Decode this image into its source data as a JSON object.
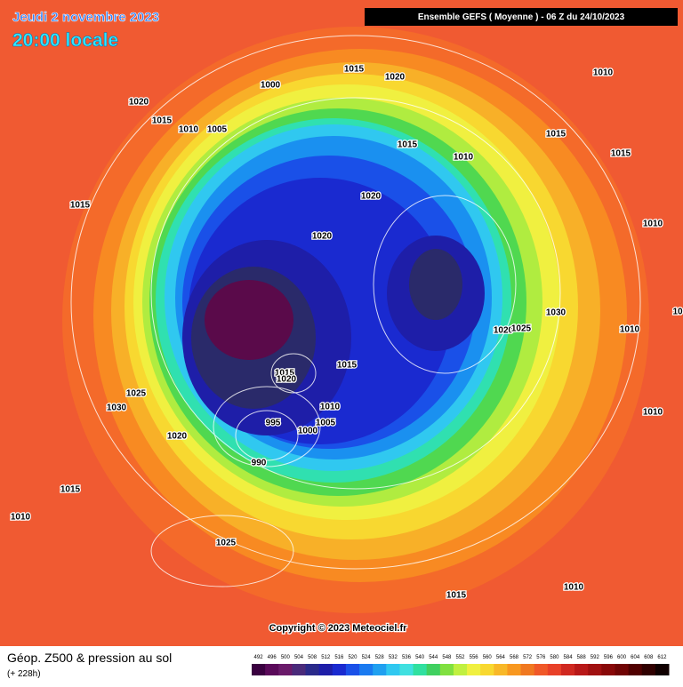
{
  "header": {
    "date": "Jeudi 2 novembre 2023",
    "time": "20:00 locale",
    "model": "Ensemble GEFS  ( Moyenne )  -  06 Z du 24/10/2023"
  },
  "isobar_labels": [
    "1015",
    "1020",
    "1010",
    "1000",
    "1020",
    "1015",
    "1010",
    "1005",
    "1015",
    "1015",
    "1010",
    "1015",
    "1015",
    "1020",
    "1010",
    "1020",
    "1030",
    "1020",
    "1025",
    "1010",
    "1015",
    "1015",
    "1020",
    "1010",
    "1025",
    "1030",
    "1005",
    "995",
    "1000",
    "1010",
    "1020",
    "990",
    "1015",
    "1010",
    "1025",
    "1015",
    "1010",
    "10"
  ],
  "copyright": "Copyright © 2023 Meteociel.fr",
  "footer": {
    "title": "Géop. Z500 & pression au sol",
    "lead": "(+ 228h)"
  },
  "legend": {
    "labels": [
      "492",
      "496",
      "500",
      "504",
      "508",
      "512",
      "516",
      "520",
      "524",
      "528",
      "532",
      "536",
      "540",
      "544",
      "548",
      "552",
      "556",
      "560",
      "564",
      "568",
      "572",
      "576",
      "580",
      "584",
      "588",
      "592",
      "596",
      "600",
      "604",
      "608",
      "612"
    ],
    "colors": [
      "#3a0040",
      "#5a0a5a",
      "#6a1a6a",
      "#4a2a7a",
      "#2a2a8a",
      "#1e1ea8",
      "#1a2ad0",
      "#1a50e8",
      "#1a7af0",
      "#20a0f0",
      "#30c8f0",
      "#40e0e0",
      "#30e0a0",
      "#40d060",
      "#80e040",
      "#c0f040",
      "#f0f040",
      "#f8d830",
      "#f8b828",
      "#f89820",
      "#f07820",
      "#f05828",
      "#e84028",
      "#d02820",
      "#b81818",
      "#a01010",
      "#880808",
      "#700404",
      "#500000",
      "#300000",
      "#100000"
    ]
  }
}
